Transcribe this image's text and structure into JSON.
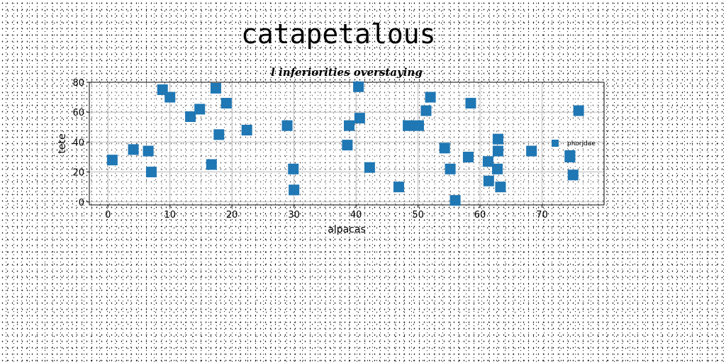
{
  "figure_title": "catapetalous",
  "chart_data": {
    "type": "scatter",
    "title": "l inferiorities overstaying",
    "xlabel": "alpacas",
    "ylabel": "tete",
    "xlim": [
      -3,
      80
    ],
    "ylim": [
      -2,
      80
    ],
    "xticks": [
      0,
      10,
      20,
      30,
      40,
      50,
      60,
      70
    ],
    "yticks": [
      0,
      20,
      40,
      60,
      80
    ],
    "grid": true,
    "legend_position": "right",
    "marker": "square",
    "series": [
      {
        "name": "phorjdae",
        "color": "#1f77b4",
        "points": [
          [
            0.7,
            28
          ],
          [
            4.1,
            35
          ],
          [
            6.5,
            34
          ],
          [
            7.0,
            20
          ],
          [
            8.8,
            75
          ],
          [
            10.0,
            70
          ],
          [
            13.3,
            57
          ],
          [
            14.8,
            62
          ],
          [
            16.7,
            25
          ],
          [
            17.4,
            76
          ],
          [
            17.9,
            45
          ],
          [
            19.1,
            66
          ],
          [
            22.4,
            48
          ],
          [
            28.9,
            51
          ],
          [
            29.9,
            22
          ],
          [
            30.0,
            8
          ],
          [
            38.6,
            38
          ],
          [
            38.9,
            51
          ],
          [
            40.4,
            77
          ],
          [
            40.6,
            56
          ],
          [
            42.2,
            23
          ],
          [
            46.9,
            10
          ],
          [
            48.4,
            51
          ],
          [
            50.1,
            51
          ],
          [
            51.3,
            61
          ],
          [
            52.0,
            70
          ],
          [
            54.3,
            36
          ],
          [
            55.2,
            22
          ],
          [
            56.0,
            1
          ],
          [
            58.1,
            30
          ],
          [
            58.5,
            66
          ],
          [
            61.3,
            27
          ],
          [
            61.4,
            14
          ],
          [
            62.8,
            22
          ],
          [
            62.9,
            42
          ],
          [
            62.9,
            34
          ],
          [
            63.3,
            10
          ],
          [
            68.3,
            34
          ],
          [
            74.5,
            31
          ],
          [
            74.5,
            30
          ],
          [
            75.0,
            18
          ],
          [
            75.9,
            61
          ]
        ]
      }
    ]
  }
}
